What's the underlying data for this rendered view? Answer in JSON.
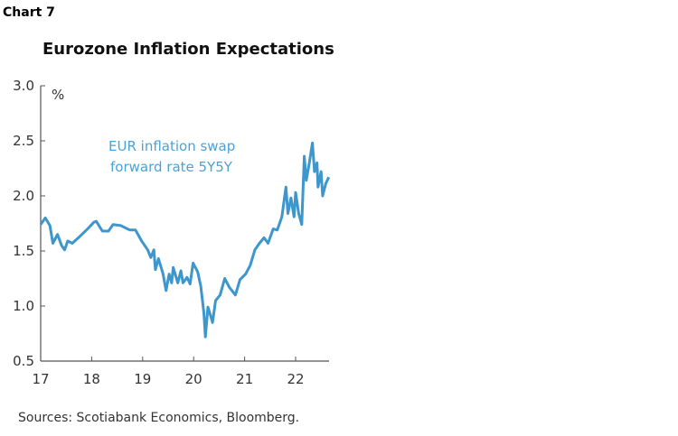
{
  "header": {
    "chart_label": "Chart 7"
  },
  "footer": {
    "source": "Sources: Scotiabank Economics, Bloomberg."
  },
  "chart_data": {
    "type": "line",
    "title": "Eurozone Inflation Expectations",
    "ylabel": "%",
    "xlabel": "",
    "ylim": [
      0.5,
      3.0
    ],
    "xlim": [
      17,
      22.65
    ],
    "y_ticks": [
      "3.0",
      "2.5",
      "2.0",
      "1.5",
      "1.0",
      "0.5"
    ],
    "x_ticks": [
      "17",
      "18",
      "19",
      "20",
      "21",
      "22"
    ],
    "grid": false,
    "line_color": "#3d96cc",
    "annotation": [
      "EUR inflation swap",
      "forward rate 5Y5Y"
    ],
    "series": [
      {
        "x": [
          17.0,
          17.09,
          17.18,
          17.24,
          17.33,
          17.41,
          17.47,
          17.53,
          17.62,
          17.74,
          17.92,
          18.04,
          18.09,
          18.21,
          18.33,
          18.42,
          18.57,
          18.75,
          18.86,
          18.98,
          19.1,
          19.16,
          19.22,
          19.25,
          19.31,
          19.4,
          19.46,
          19.52,
          19.57,
          19.6,
          19.69,
          19.75,
          19.79,
          19.87,
          19.93,
          19.99,
          20.08,
          20.14,
          20.2,
          20.23,
          20.28,
          20.34,
          20.37,
          20.43,
          20.52,
          20.61,
          20.7,
          20.82,
          20.91,
          21.02,
          21.11,
          21.2,
          21.29,
          21.38,
          21.46,
          21.56,
          21.64,
          21.73,
          21.81,
          21.85,
          21.91,
          21.97,
          22.0,
          22.06,
          22.12,
          22.17,
          22.21,
          22.27,
          22.33,
          22.37,
          22.42,
          22.44,
          22.5,
          22.53,
          22.59,
          22.65
        ],
        "values": [
          1.74,
          1.8,
          1.73,
          1.57,
          1.65,
          1.55,
          1.51,
          1.59,
          1.57,
          1.62,
          1.7,
          1.76,
          1.77,
          1.68,
          1.68,
          1.74,
          1.73,
          1.69,
          1.69,
          1.59,
          1.51,
          1.44,
          1.51,
          1.33,
          1.43,
          1.29,
          1.14,
          1.29,
          1.21,
          1.35,
          1.21,
          1.32,
          1.21,
          1.26,
          1.2,
          1.39,
          1.31,
          1.18,
          0.94,
          0.72,
          0.99,
          0.9,
          0.85,
          1.05,
          1.1,
          1.25,
          1.17,
          1.1,
          1.24,
          1.29,
          1.37,
          1.51,
          1.57,
          1.62,
          1.57,
          1.7,
          1.69,
          1.81,
          2.08,
          1.84,
          1.98,
          1.81,
          2.03,
          1.84,
          1.74,
          2.36,
          2.14,
          2.3,
          2.48,
          2.22,
          2.3,
          2.08,
          2.22,
          2.0,
          2.11,
          2.17
        ]
      }
    ]
  }
}
